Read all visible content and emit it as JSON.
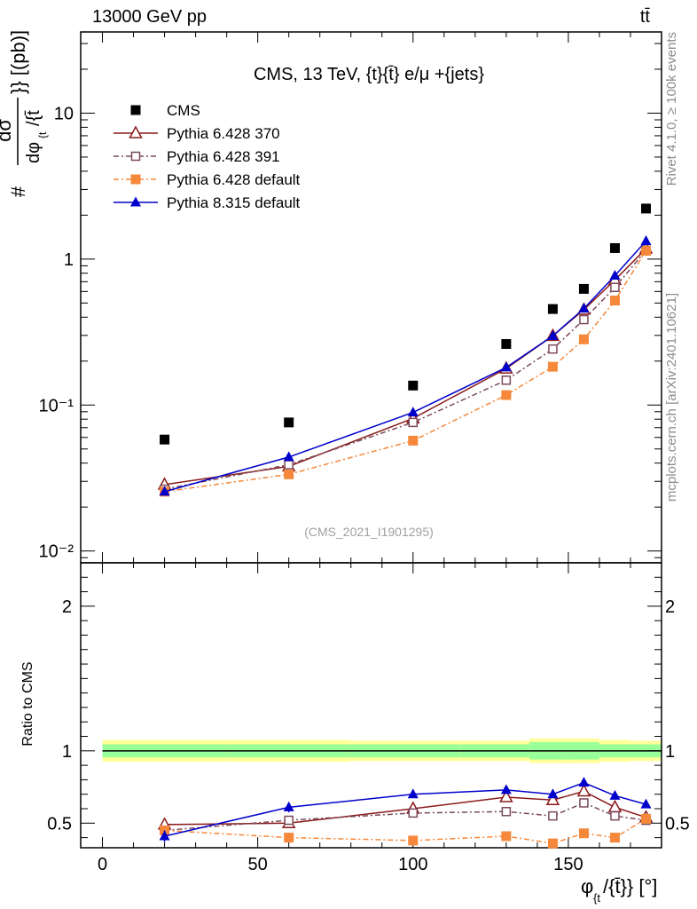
{
  "header": {
    "left": "13000 GeV pp",
    "right": "tt̄"
  },
  "side_labels": {
    "rivet": "Rivet 4.1.0, ≥ 100k events",
    "mcplots": "mcplots.cern.ch [arXiv:2401.10621]"
  },
  "chart_data": {
    "type": "scatter",
    "title": "CMS, 13 TeV, {t}{t̄} e/μ +{jets}",
    "watermark": "(CMS_2021_I1901295)",
    "ylabel": "#frac{dσ}{dφ_{t}/{t̄}}} [(pb)]",
    "ylabel_parts": {
      "hash": "#",
      "num": "dσ",
      "den": "dφ",
      "den_sub": "{t",
      "tail": "/{t̄",
      "unit": "}} [(pb)]"
    },
    "xlabel": "φ_{t}/{t̄}} [°]",
    "xlabel_parts": {
      "phi": "φ",
      "sub": "{t",
      "rest": "/{t̄}} [°]"
    },
    "ratio_ylabel": "Ratio to CMS",
    "x_range": [
      -7,
      180
    ],
    "x_ticks": [
      0,
      50,
      100,
      150
    ],
    "x_tick_labels": [
      "0",
      "50",
      "100",
      "150"
    ],
    "y_log_range": [
      0.0083,
      36
    ],
    "y_major_ticks": [
      0.01,
      0.1,
      1,
      10
    ],
    "y_tick_labels": [
      "10⁻²",
      "10⁻¹",
      "1",
      "10"
    ],
    "ratio_range": [
      0.33,
      2.3
    ],
    "ratio_ticks": [
      0.5,
      1,
      2
    ],
    "ratio_tick_labels": [
      "0.5",
      "1",
      "2"
    ],
    "x": [
      20,
      60,
      100,
      130,
      145,
      155,
      165,
      175
    ],
    "band": {
      "green_half": [
        0.045,
        0.045,
        0.045,
        0.045,
        0.06,
        0.06,
        0.045,
        0.045
      ],
      "yellow_half": [
        0.075,
        0.075,
        0.07,
        0.07,
        0.085,
        0.085,
        0.075,
        0.07
      ]
    },
    "series": [
      {
        "name": "CMS",
        "color": "#000000",
        "marker": "square",
        "dash": "",
        "values": [
          0.058,
          0.076,
          0.136,
          0.262,
          0.455,
          0.625,
          1.19,
          2.22
        ],
        "ratio": [
          1,
          1,
          1,
          1,
          1,
          1,
          1,
          1
        ],
        "ratio_err": [
          0,
          0,
          0,
          0,
          0,
          0,
          0,
          0
        ]
      },
      {
        "name": "Pythia 6.428 370",
        "color": "#8b1a1a",
        "marker": "triangle-open",
        "dash": "",
        "values": [
          0.0285,
          0.038,
          0.081,
          0.178,
          0.298,
          0.45,
          0.72,
          1.18
        ],
        "ratio": [
          0.49,
          0.5,
          0.6,
          0.68,
          0.66,
          0.72,
          0.61,
          0.54
        ],
        "ratio_err": [
          0.045,
          0.03,
          0.02,
          0.02,
          0.02,
          0.02,
          0.015,
          0.01
        ]
      },
      {
        "name": "Pythia 6.428 391",
        "color": "#7a4a5a",
        "marker": "square-open",
        "dash": "6,3,2,3",
        "values": [
          0.0265,
          0.039,
          0.076,
          0.148,
          0.242,
          0.385,
          0.64,
          1.15
        ],
        "ratio": [
          0.45,
          0.52,
          0.57,
          0.58,
          0.55,
          0.64,
          0.55,
          0.52
        ],
        "ratio_err": [
          0.02,
          0.025,
          0.02,
          0.02,
          0.02,
          0.015,
          0.01,
          0.01
        ]
      },
      {
        "name": "Pythia 6.428 default",
        "color": "#f5883a",
        "marker": "square",
        "dash": "6,3,2,3",
        "values": [
          0.0255,
          0.0335,
          0.057,
          0.117,
          0.183,
          0.282,
          0.52,
          1.14
        ],
        "ratio": [
          0.45,
          0.4,
          0.38,
          0.41,
          0.36,
          0.43,
          0.4,
          0.53
        ],
        "ratio_err": [
          0.02,
          0.02,
          0.02,
          0.02,
          0.025,
          0.02,
          0.015,
          0.01
        ]
      },
      {
        "name": "Pythia 8.315 default",
        "color": "#0000cc",
        "marker": "triangle",
        "dash": "",
        "values": [
          0.0255,
          0.044,
          0.089,
          0.181,
          0.298,
          0.458,
          0.77,
          1.33
        ],
        "ratio": [
          0.41,
          0.61,
          0.7,
          0.73,
          0.7,
          0.78,
          0.69,
          0.63
        ],
        "ratio_err": [
          0.04,
          0.035,
          0.025,
          0.02,
          0.02,
          0.02,
          0.015,
          0.01
        ]
      }
    ]
  }
}
